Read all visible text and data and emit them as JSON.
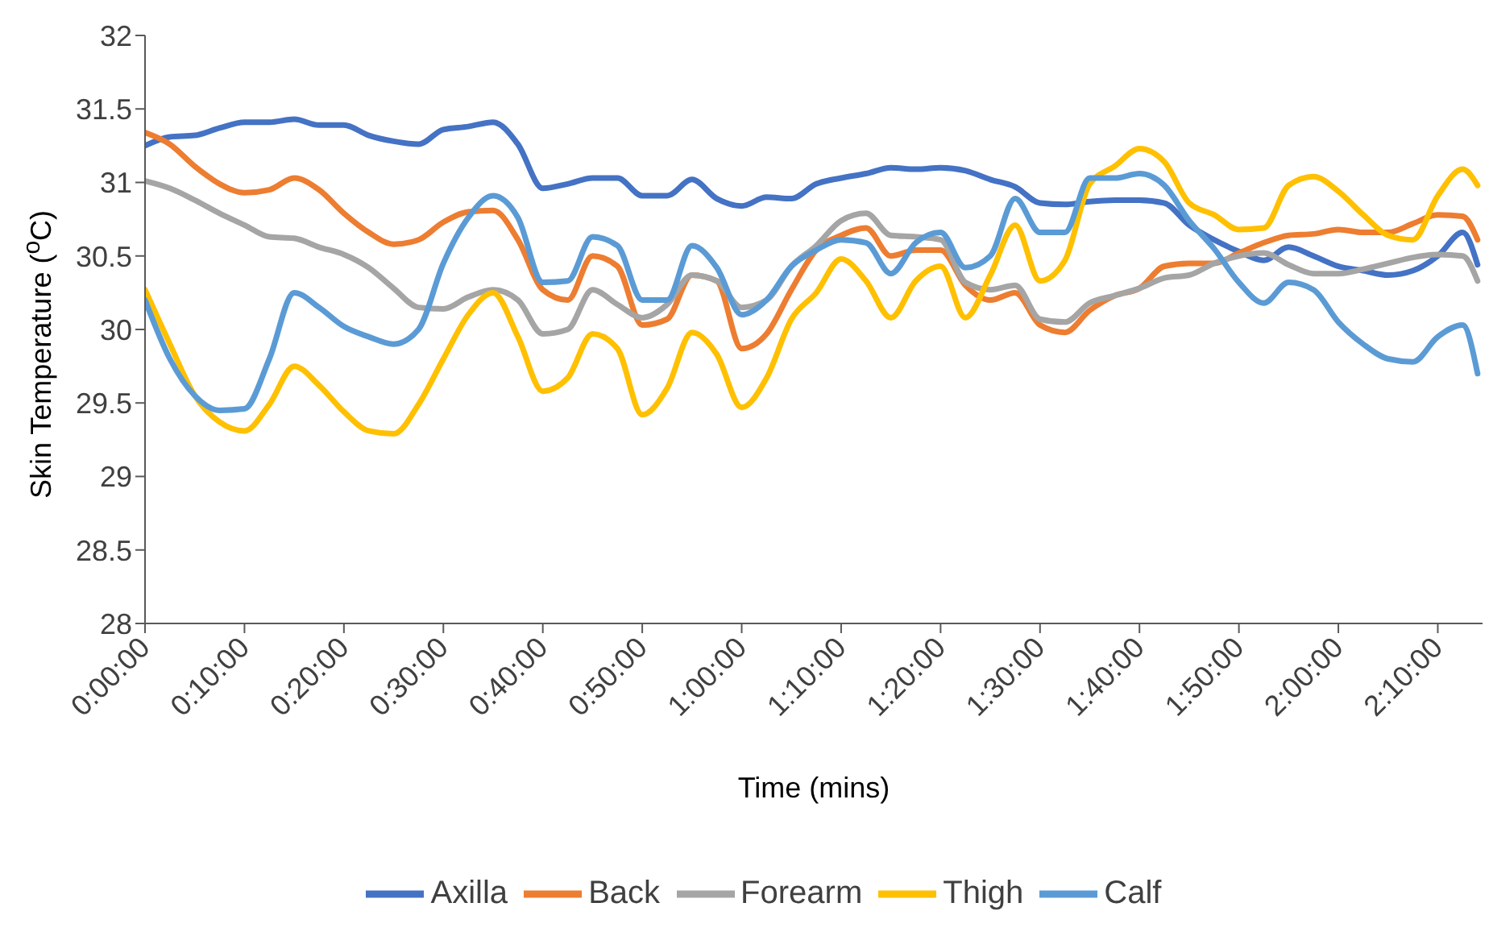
{
  "chart_data": {
    "type": "line",
    "xlabel": "Time (mins)",
    "ylabel": "Skin Temperature ($^{o}$C)",
    "x": [
      0,
      2.5,
      5,
      7.5,
      10,
      12.5,
      15,
      17.5,
      20,
      22.5,
      25,
      27.5,
      30,
      32.5,
      35,
      37.5,
      40,
      42.5,
      45,
      47.5,
      50,
      52.5,
      55,
      57.5,
      60,
      62.5,
      65,
      67.5,
      70,
      72.5,
      75,
      77.5,
      80,
      82.5,
      85,
      87.5,
      90,
      92.5,
      95,
      97.5,
      100,
      102.5,
      105,
      107.5,
      110,
      112.5,
      115,
      117.5,
      120,
      122.5,
      125,
      127.5,
      130,
      132.5,
      134
    ],
    "xlim": [
      0,
      134.5
    ],
    "xticks": [
      {
        "value": 0,
        "label": "0:00:00"
      },
      {
        "value": 10,
        "label": "0:10:00"
      },
      {
        "value": 20,
        "label": "0:20:00"
      },
      {
        "value": 30,
        "label": "0:30:00"
      },
      {
        "value": 40,
        "label": "0:40:00"
      },
      {
        "value": 50,
        "label": "0:50:00"
      },
      {
        "value": 60,
        "label": "1:00:00"
      },
      {
        "value": 70,
        "label": "1:10:00"
      },
      {
        "value": 80,
        "label": "1:20:00"
      },
      {
        "value": 90,
        "label": "1:30:00"
      },
      {
        "value": 100,
        "label": "1:40:00"
      },
      {
        "value": 110,
        "label": "1:50:00"
      },
      {
        "value": 120,
        "label": "2:00:00"
      },
      {
        "value": 130,
        "label": "2:10:00"
      }
    ],
    "ylim": [
      28,
      32
    ],
    "yticks": [
      28,
      28.5,
      29,
      29.5,
      30,
      30.5,
      31,
      31.5,
      32
    ],
    "grid": false,
    "legend": "bottom",
    "marker": "none",
    "line_style": "solid",
    "series": [
      {
        "name": "Axilla",
        "color": "#4472c4",
        "values": [
          31.25,
          31.31,
          31.32,
          31.37,
          31.41,
          31.41,
          31.43,
          31.39,
          31.39,
          31.32,
          31.28,
          31.26,
          31.36,
          31.38,
          31.41,
          31.26,
          30.96,
          30.99,
          31.03,
          31.03,
          30.91,
          30.91,
          31.02,
          30.89,
          30.84,
          30.9,
          30.89,
          30.99,
          31.03,
          31.06,
          31.1,
          31.09,
          31.1,
          31.08,
          31.02,
          30.97,
          30.86,
          30.85,
          30.87,
          30.88,
          30.88,
          30.86,
          30.71,
          30.61,
          30.53,
          30.47,
          30.56,
          30.5,
          30.43,
          30.4,
          30.37,
          30.4,
          30.5,
          30.66,
          30.44
        ]
      },
      {
        "name": "Back",
        "color": "#ed7d31",
        "values": [
          31.34,
          31.26,
          31.11,
          30.99,
          30.93,
          30.95,
          31.03,
          30.95,
          30.79,
          30.66,
          30.58,
          30.61,
          30.73,
          30.8,
          30.81,
          30.61,
          30.27,
          30.2,
          30.5,
          30.43,
          30.03,
          30.07,
          30.37,
          30.33,
          29.87,
          29.97,
          30.27,
          30.54,
          30.64,
          30.69,
          30.5,
          30.54,
          30.54,
          30.3,
          30.2,
          30.25,
          30.03,
          29.98,
          30.13,
          30.23,
          30.28,
          30.43,
          30.45,
          30.45,
          30.52,
          30.59,
          30.64,
          30.65,
          30.68,
          30.66,
          30.66,
          30.72,
          30.78,
          30.77,
          30.61
        ]
      },
      {
        "name": "Forearm",
        "color": "#a5a5a5",
        "values": [
          31.01,
          30.96,
          30.88,
          30.79,
          30.71,
          30.63,
          30.62,
          30.56,
          30.51,
          30.42,
          30.28,
          30.15,
          30.14,
          30.22,
          30.27,
          30.2,
          29.97,
          30.0,
          30.27,
          30.17,
          30.08,
          30.17,
          30.37,
          30.33,
          30.15,
          30.2,
          30.43,
          30.57,
          30.74,
          30.79,
          30.64,
          30.63,
          30.61,
          30.32,
          30.27,
          30.3,
          30.07,
          30.05,
          30.18,
          30.23,
          30.28,
          30.35,
          30.37,
          30.45,
          30.5,
          30.52,
          30.44,
          30.38,
          30.38,
          30.41,
          30.45,
          30.49,
          30.51,
          30.5,
          30.33
        ]
      },
      {
        "name": "Thigh",
        "color": "#ffc000",
        "values": [
          30.27,
          29.9,
          29.55,
          29.37,
          29.31,
          29.49,
          29.75,
          29.62,
          29.44,
          29.31,
          29.29,
          29.49,
          29.8,
          30.1,
          30.25,
          29.95,
          29.58,
          29.67,
          29.97,
          29.87,
          29.42,
          29.6,
          29.98,
          29.83,
          29.47,
          29.67,
          30.07,
          30.25,
          30.48,
          30.33,
          30.08,
          30.33,
          30.43,
          30.08,
          30.37,
          30.71,
          30.33,
          30.47,
          30.99,
          31.11,
          31.23,
          31.14,
          30.86,
          30.78,
          30.68,
          30.69,
          30.98,
          31.04,
          30.94,
          30.78,
          30.64,
          30.61,
          30.91,
          31.09,
          30.98
        ]
      },
      {
        "name": "Calf",
        "color": "#5b9bd5",
        "values": [
          30.2,
          29.8,
          29.55,
          29.45,
          29.46,
          29.8,
          30.25,
          30.15,
          30.02,
          29.95,
          29.9,
          30.0,
          30.45,
          30.76,
          30.91,
          30.76,
          30.32,
          30.33,
          30.63,
          30.57,
          30.2,
          30.2,
          30.57,
          30.42,
          30.1,
          30.2,
          30.43,
          30.54,
          30.61,
          30.59,
          30.38,
          30.59,
          30.66,
          30.42,
          30.5,
          30.89,
          30.66,
          30.66,
          31.03,
          31.03,
          31.06,
          30.98,
          30.74,
          30.55,
          30.32,
          30.18,
          30.32,
          30.27,
          30.05,
          29.9,
          29.8,
          29.78,
          29.95,
          30.03,
          29.7
        ]
      }
    ]
  }
}
